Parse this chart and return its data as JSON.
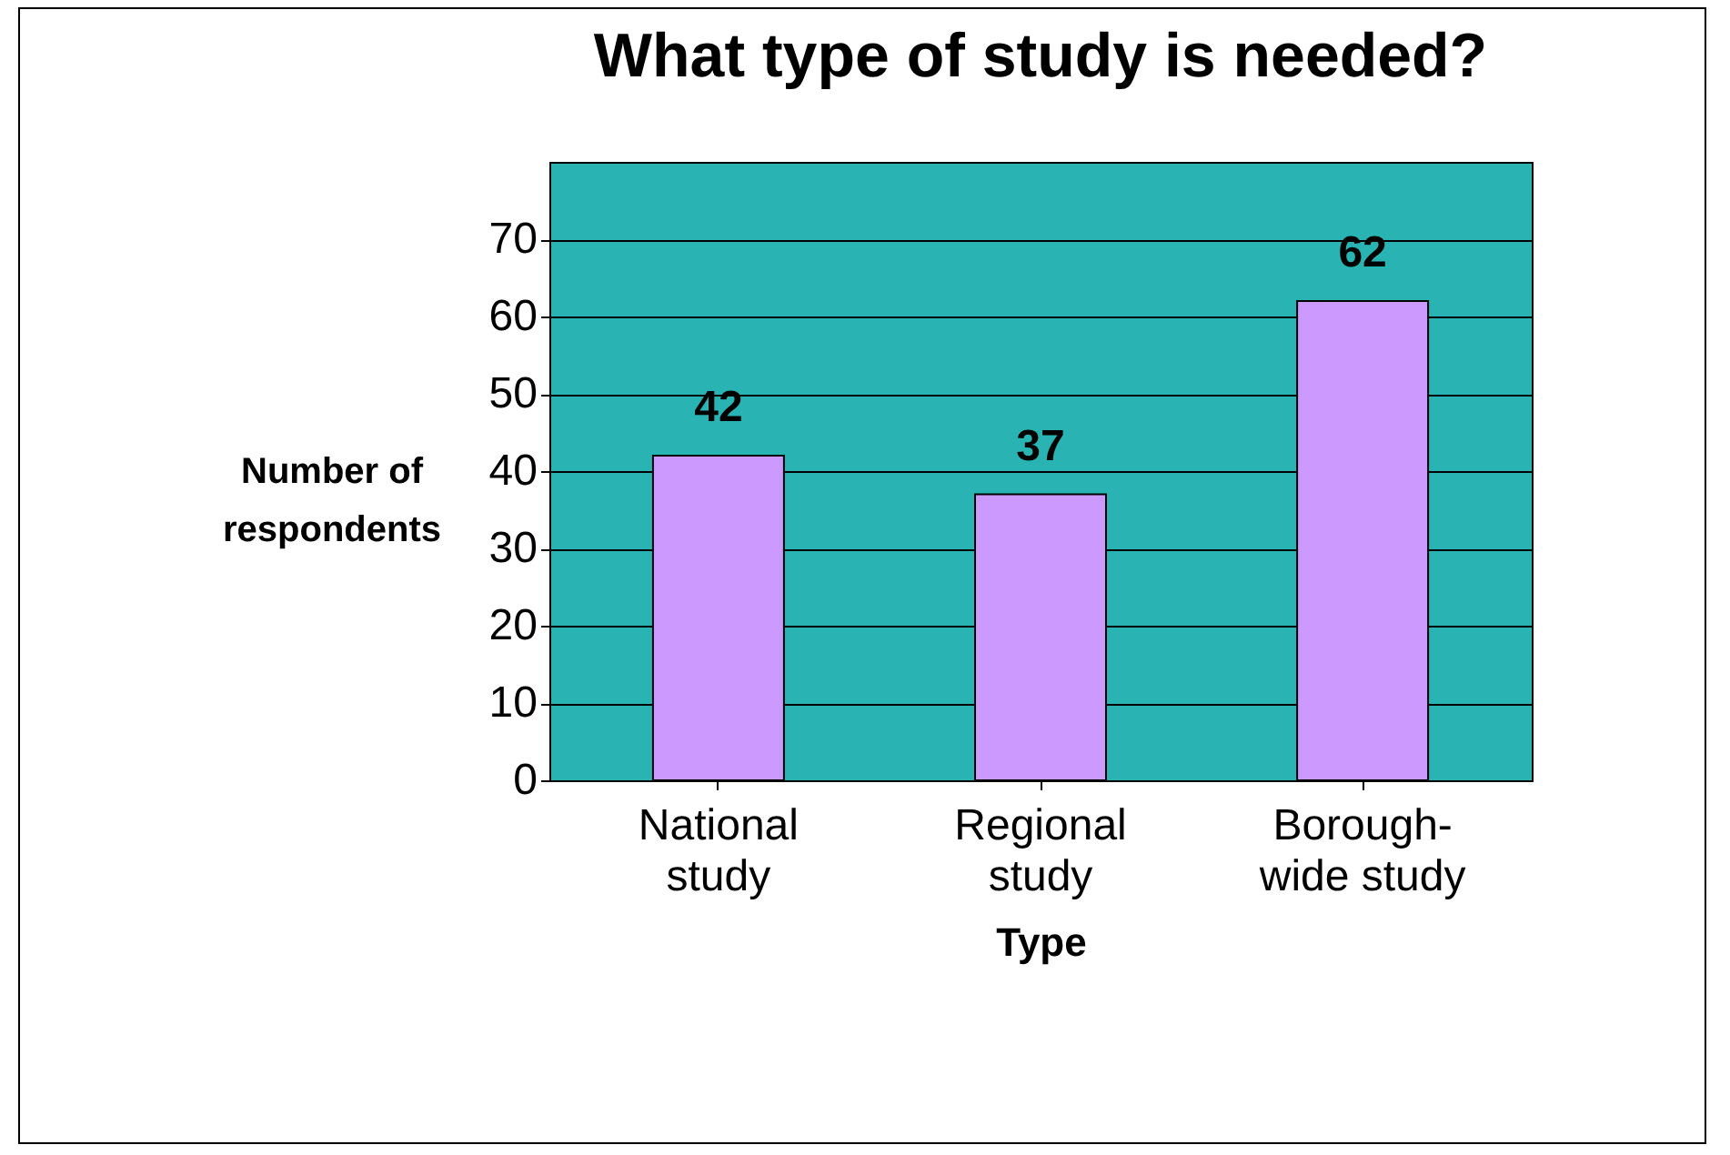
{
  "chart_data": {
    "type": "bar",
    "title": "What type of study is needed?",
    "xlabel": "Type",
    "ylabel": "Number of respondents",
    "categories": [
      "National study",
      "Regional study",
      "Borough-wide study"
    ],
    "values": [
      42,
      37,
      62
    ],
    "color": "#cc99ff",
    "ylim": [
      0,
      80
    ],
    "yticks": [
      0,
      10,
      20,
      30,
      40,
      50,
      60,
      70
    ],
    "grid": "y",
    "data_labels": true
  }
}
